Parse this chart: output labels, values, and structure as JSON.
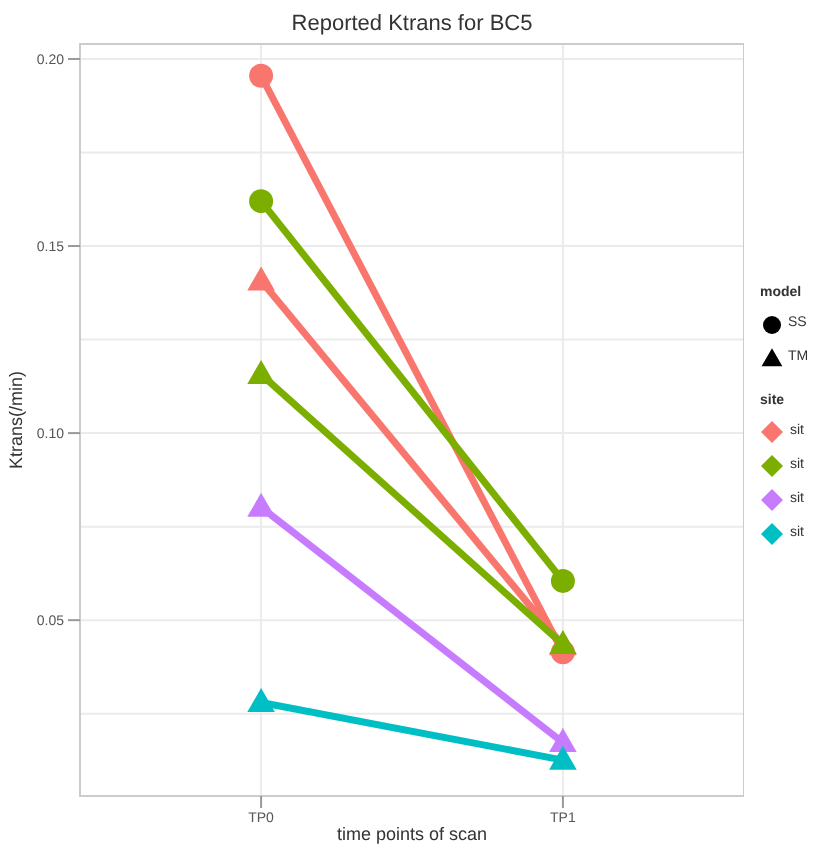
{
  "chart_data": {
    "type": "line",
    "title": "Reported Ktrans for BC5",
    "xlabel": "time points of scan",
    "ylabel": "Ktrans(/min)",
    "categories": [
      "TP0",
      "TP1"
    ],
    "series": [
      {
        "color": "#f8766d",
        "marker": "circle",
        "values": [
          0.1955,
          0.0414
        ]
      },
      {
        "color": "#7cae00",
        "marker": "circle",
        "values": [
          0.162,
          0.0605
        ]
      },
      {
        "color": "#f8766d",
        "marker": "triangle",
        "values": [
          0.1407,
          0.0432
        ]
      },
      {
        "color": "#7cae00",
        "marker": "triangle",
        "values": [
          0.1157,
          0.0435
        ]
      },
      {
        "color": "#c77cff",
        "marker": "triangle",
        "values": [
          0.0802,
          0.0173
        ]
      },
      {
        "color": "#00bfc4",
        "marker": "triangle",
        "values": [
          0.028,
          0.0126
        ]
      }
    ],
    "ylim": [
      0.003,
      0.204
    ],
    "yticks": [
      {
        "value": 0.05,
        "label": "0.05"
      },
      {
        "value": 0.1,
        "label": "0.10"
      },
      {
        "value": 0.15,
        "label": "0.15"
      },
      {
        "value": 0.2,
        "label": "0.20"
      }
    ],
    "grid": true,
    "legend_title": "site",
    "annotations": [
      "model",
      "SS",
      "TM",
      "sit",
      "sit",
      "sit",
      "sit"
    ]
  }
}
